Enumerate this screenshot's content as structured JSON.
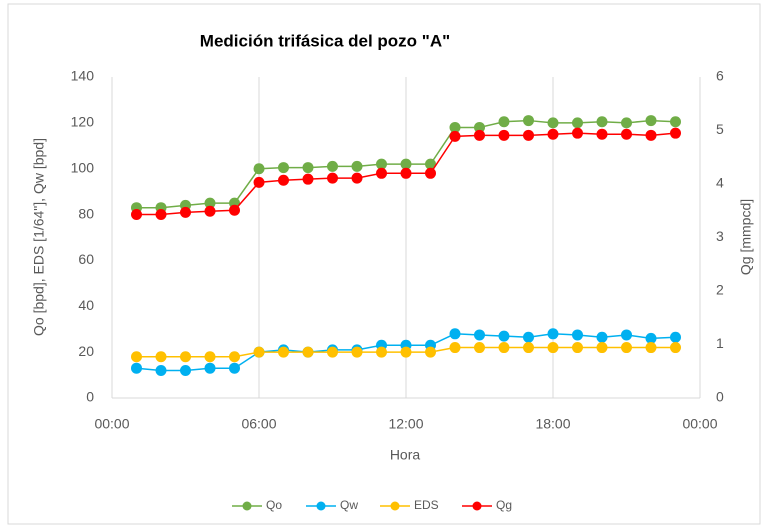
{
  "chart_data": {
    "type": "line",
    "title": "Medición trifásica del pozo \"A\"",
    "x_label": "Hora",
    "y_label": "Qo [bpd], EDS [1/64\"], Qw [bpd]",
    "y2_label": "Qg [mmpcd]",
    "x": [
      1,
      2,
      3,
      4,
      5,
      6,
      7,
      8,
      9,
      10,
      11,
      12,
      13,
      14,
      15,
      16,
      17,
      18,
      19,
      20,
      21,
      22,
      23
    ],
    "xlim": [
      0,
      24
    ],
    "xticks": [
      {
        "value": 0,
        "label": "00:00"
      },
      {
        "value": 6,
        "label": "06:00"
      },
      {
        "value": 12,
        "label": "12:00"
      },
      {
        "value": 18,
        "label": "18:00"
      },
      {
        "value": 24,
        "label": "00:00"
      }
    ],
    "ylim": [
      0,
      140
    ],
    "yticks": [
      0,
      20,
      40,
      60,
      80,
      100,
      120,
      140
    ],
    "y2lim": [
      0,
      6
    ],
    "y2ticks": [
      0,
      1,
      2,
      3,
      4,
      5,
      6
    ],
    "grid": "x",
    "legend": "bottom",
    "series": [
      {
        "name": "Qo",
        "color": "#70ad47",
        "values": [
          83,
          83,
          84,
          85,
          85,
          100,
          100.5,
          100.5,
          101,
          101,
          102,
          102,
          102,
          118,
          118,
          120.5,
          121,
          120,
          120,
          120.5,
          120,
          121,
          120.5
        ]
      },
      {
        "name": "Qw",
        "color": "#00b0f0",
        "values": [
          13,
          12,
          12,
          13,
          13,
          20,
          21,
          20,
          21,
          21,
          23,
          23,
          23,
          28,
          27.5,
          27,
          26.5,
          28,
          27.5,
          26.5,
          27.5,
          26,
          26.5
        ]
      },
      {
        "name": "EDS",
        "color": "#ffc000",
        "values": [
          18,
          18,
          18,
          18,
          18,
          20,
          20,
          20,
          20,
          20,
          20,
          20,
          20,
          22,
          22,
          22,
          22,
          22,
          22,
          22,
          22,
          22,
          22
        ]
      },
      {
        "name": "Qg",
        "color": "#ff0000",
        "axis": "y2",
        "values": [
          3.43,
          3.43,
          3.47,
          3.49,
          3.51,
          4.03,
          4.07,
          4.09,
          4.11,
          4.11,
          4.2,
          4.2,
          4.2,
          4.89,
          4.91,
          4.91,
          4.91,
          4.93,
          4.95,
          4.93,
          4.93,
          4.91,
          4.95
        ]
      }
    ]
  }
}
